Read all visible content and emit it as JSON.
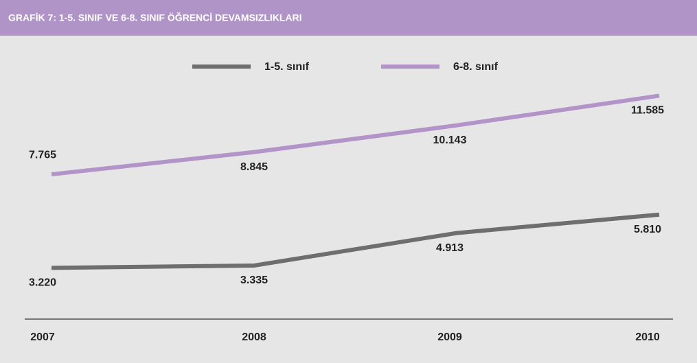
{
  "header": {
    "title": "GRAFİK 7: 1-5. SINIF VE 6-8. SINIF ÖĞRENCİ DEVAMSIZLIKLARI"
  },
  "chart_data": {
    "type": "line",
    "categories": [
      "2007",
      "2008",
      "2009",
      "2010"
    ],
    "series": [
      {
        "name": "1-5. sınıf",
        "color": "#6e6e6e",
        "values": [
          3220,
          3335,
          4913,
          5810
        ],
        "value_labels": [
          "3.220",
          "3.335",
          "4.913",
          "5.810"
        ]
      },
      {
        "name": "6-8. sınıf",
        "color": "#b394c9",
        "values": [
          7765,
          8845,
          10143,
          11585
        ],
        "value_labels": [
          "7.765",
          "8.845",
          "10.143",
          "11.585"
        ]
      }
    ],
    "ylim": [
      0,
      14000
    ],
    "legend": "top"
  }
}
